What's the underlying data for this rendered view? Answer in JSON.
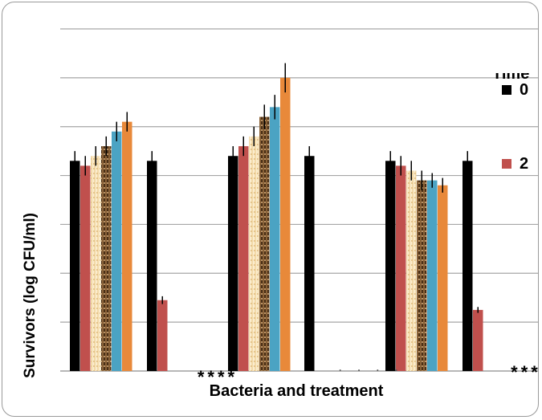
{
  "chart_data": {
    "type": "bar",
    "xlabel": "Bacteria and treatment",
    "ylabel": "Survivors (log CFU/ml)",
    "ylim": [
      0,
      7
    ],
    "grid": true,
    "legend_title": "Time",
    "legend_position": "right",
    "groups": [
      {
        "values": [
          4.3,
          4.2,
          4.4,
          4.6,
          4.9,
          5.1
        ],
        "errors": [
          0.2,
          0.2,
          0.2,
          0.2,
          0.2,
          0.2
        ]
      },
      {
        "values": [
          4.3,
          1.45
        ],
        "errors": [
          0.2,
          0.08
        ]
      },
      {
        "values": [
          4.4,
          4.6,
          4.8,
          5.2,
          5.4,
          6.0
        ],
        "errors": [
          0.2,
          0.2,
          0.2,
          0.25,
          0.25,
          0.3
        ]
      },
      {
        "values": [
          4.4
        ],
        "errors": [
          0.2
        ]
      },
      {
        "values": [
          4.3,
          4.2,
          4.1,
          3.9,
          3.9,
          3.8
        ],
        "errors": [
          0.2,
          0.2,
          0.2,
          0.2,
          0.15,
          0.15
        ]
      },
      {
        "values": [
          4.3,
          1.25
        ],
        "errors": [
          0.2,
          0.06
        ]
      }
    ],
    "series": [
      {
        "name": "0",
        "color": "#000000",
        "pattern": "solid"
      },
      {
        "name": "2",
        "color": "#c0504d",
        "pattern": "solid"
      },
      {
        "name": "",
        "color": "#f5deb3",
        "pattern": "stripe-light"
      },
      {
        "name": "",
        "color": "#5a3a1a",
        "pattern": "stripe-dark"
      },
      {
        "name": "",
        "color": "#4ba3c3",
        "pattern": "solid"
      },
      {
        "name": "",
        "color": "#e8893a",
        "pattern": "solid"
      }
    ],
    "markers": [
      {
        "text": "****",
        "style": "bold"
      },
      {
        "text": "· · · ·",
        "style": "dots"
      },
      {
        "text": "***",
        "style": "bold"
      }
    ]
  }
}
